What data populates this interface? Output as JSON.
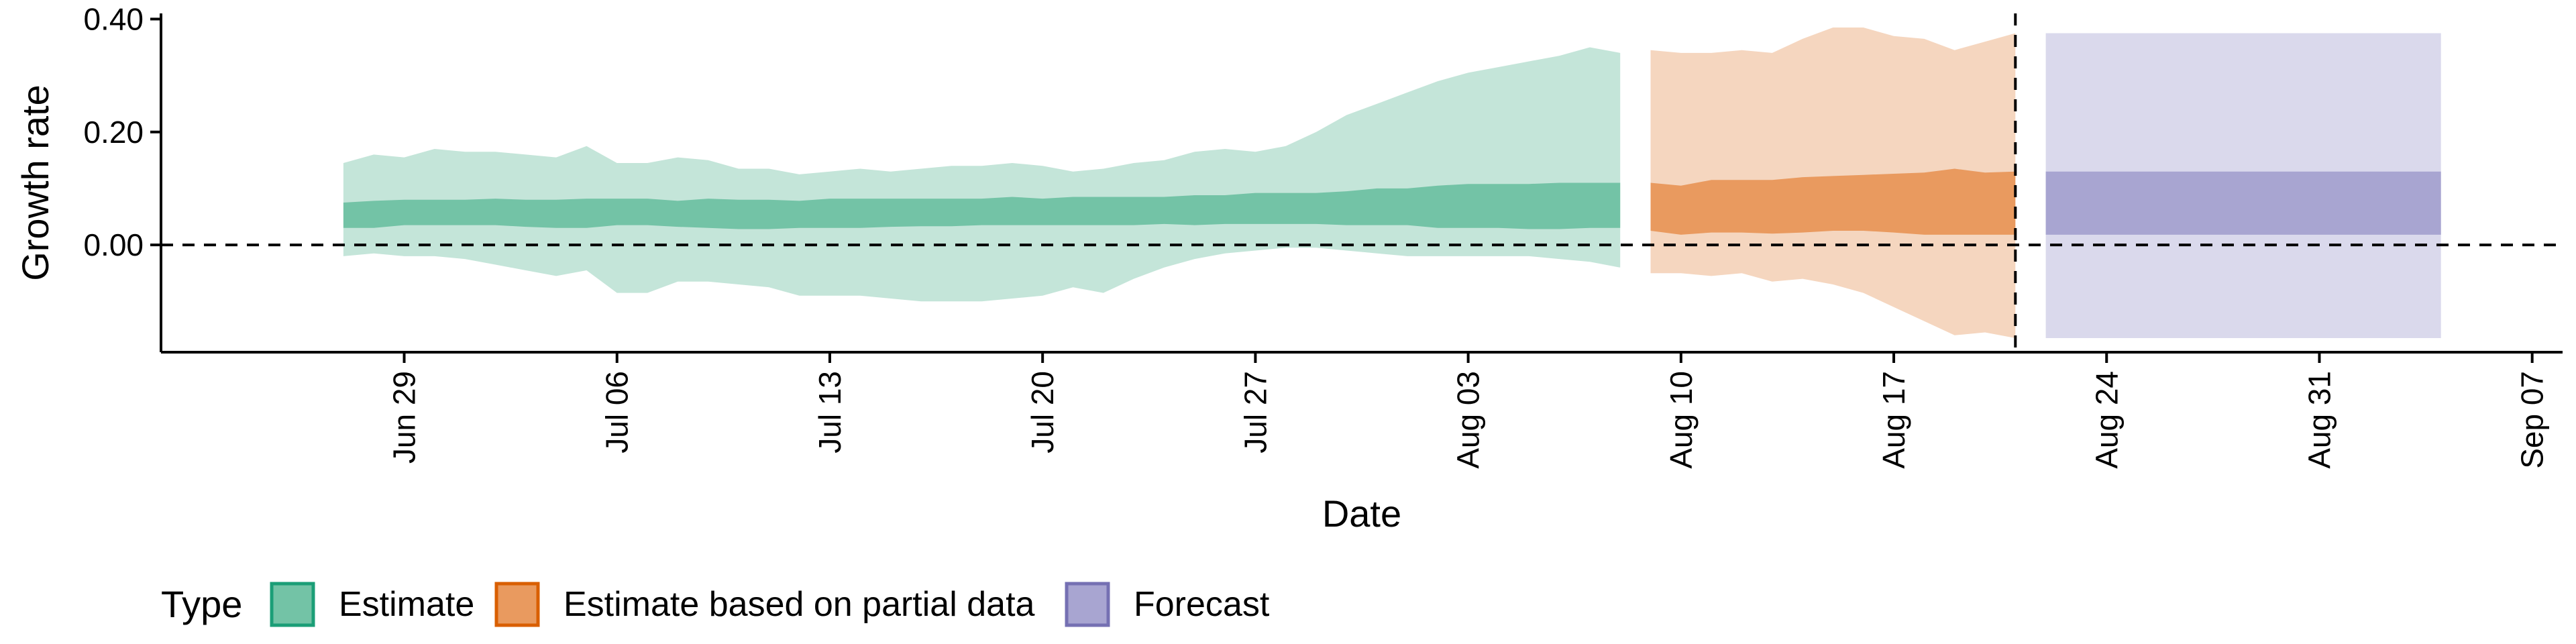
{
  "chart_data": {
    "type": "area",
    "xlabel": "Date",
    "ylabel": "Growth rate",
    "ylim": [
      -0.19,
      0.41
    ],
    "xlim": [
      "2020-06-21",
      "2020-09-08"
    ],
    "y_ticks": [
      0.0,
      0.2,
      0.4
    ],
    "y_tick_labels": [
      "0.00",
      "0.20",
      "0.40"
    ],
    "x_ticks": [
      "2020-06-29",
      "2020-07-06",
      "2020-07-13",
      "2020-07-20",
      "2020-07-27",
      "2020-08-03",
      "2020-08-10",
      "2020-08-17",
      "2020-08-24",
      "2020-08-31",
      "2020-09-07"
    ],
    "x_tick_labels": [
      "Jun 29",
      "Jul 06",
      "Jul 13",
      "Jul 20",
      "Jul 27",
      "Aug 03",
      "Aug 10",
      "Aug 17",
      "Aug 24",
      "Aug 31",
      "Sep 07"
    ],
    "reference_lines": [
      {
        "axis": "y",
        "value": 0.0,
        "style": "dashed"
      },
      {
        "axis": "x",
        "value": "2020-08-21",
        "style": "dashed"
      }
    ],
    "legend": {
      "title": "Type",
      "position": "bottom-left",
      "entries": [
        {
          "label": "Estimate",
          "fill": "#73c3a6",
          "border": "#1b9e77"
        },
        {
          "label": "Estimate based on partial data",
          "fill": "#e99a5f",
          "border": "#d95f02"
        },
        {
          "label": "Forecast",
          "fill": "#a8a5d1",
          "border": "#7570b3"
        }
      ]
    },
    "series": [
      {
        "name": "Estimate",
        "outer_color": "#c4e5d9",
        "inner_color": "#73c3a6",
        "dates": [
          "2020-06-27",
          "2020-06-28",
          "2020-06-29",
          "2020-06-30",
          "2020-07-01",
          "2020-07-02",
          "2020-07-03",
          "2020-07-04",
          "2020-07-05",
          "2020-07-06",
          "2020-07-07",
          "2020-07-08",
          "2020-07-09",
          "2020-07-10",
          "2020-07-11",
          "2020-07-12",
          "2020-07-13",
          "2020-07-14",
          "2020-07-15",
          "2020-07-16",
          "2020-07-17",
          "2020-07-18",
          "2020-07-19",
          "2020-07-20",
          "2020-07-21",
          "2020-07-22",
          "2020-07-23",
          "2020-07-24",
          "2020-07-25",
          "2020-07-26",
          "2020-07-27",
          "2020-07-28",
          "2020-07-29",
          "2020-07-30",
          "2020-07-31",
          "2020-08-01",
          "2020-08-02",
          "2020-08-03",
          "2020-08-04",
          "2020-08-05",
          "2020-08-06",
          "2020-08-07",
          "2020-08-08"
        ],
        "lower_90": [
          -0.02,
          -0.015,
          -0.02,
          -0.02,
          -0.025,
          -0.035,
          -0.045,
          -0.055,
          -0.045,
          -0.085,
          -0.085,
          -0.065,
          -0.065,
          -0.07,
          -0.075,
          -0.09,
          -0.09,
          -0.09,
          -0.095,
          -0.1,
          -0.1,
          -0.1,
          -0.095,
          -0.09,
          -0.075,
          -0.085,
          -0.06,
          -0.04,
          -0.025,
          -0.015,
          -0.01,
          -0.005,
          -0.005,
          -0.01,
          -0.015,
          -0.02,
          -0.02,
          -0.02,
          -0.02,
          -0.02,
          -0.025,
          -0.03,
          -0.04
        ],
        "upper_90": [
          0.145,
          0.16,
          0.155,
          0.17,
          0.165,
          0.165,
          0.16,
          0.155,
          0.175,
          0.145,
          0.145,
          0.155,
          0.15,
          0.135,
          0.135,
          0.125,
          0.13,
          0.135,
          0.13,
          0.135,
          0.14,
          0.14,
          0.145,
          0.14,
          0.13,
          0.135,
          0.145,
          0.15,
          0.165,
          0.17,
          0.165,
          0.175,
          0.2,
          0.23,
          0.25,
          0.27,
          0.29,
          0.305,
          0.315,
          0.325,
          0.335,
          0.35,
          0.34
        ],
        "lower_50": [
          0.03,
          0.03,
          0.035,
          0.035,
          0.035,
          0.035,
          0.032,
          0.03,
          0.03,
          0.035,
          0.035,
          0.032,
          0.03,
          0.028,
          0.028,
          0.03,
          0.03,
          0.03,
          0.032,
          0.033,
          0.033,
          0.035,
          0.035,
          0.035,
          0.035,
          0.035,
          0.035,
          0.037,
          0.035,
          0.037,
          0.037,
          0.037,
          0.037,
          0.035,
          0.035,
          0.035,
          0.03,
          0.03,
          0.03,
          0.028,
          0.028,
          0.03,
          0.03
        ],
        "upper_50": [
          0.075,
          0.078,
          0.08,
          0.08,
          0.08,
          0.082,
          0.08,
          0.08,
          0.082,
          0.082,
          0.082,
          0.078,
          0.082,
          0.08,
          0.08,
          0.078,
          0.082,
          0.082,
          0.082,
          0.082,
          0.082,
          0.082,
          0.085,
          0.082,
          0.085,
          0.085,
          0.085,
          0.085,
          0.088,
          0.088,
          0.092,
          0.092,
          0.092,
          0.095,
          0.1,
          0.1,
          0.105,
          0.108,
          0.108,
          0.108,
          0.11,
          0.11,
          0.11
        ]
      },
      {
        "name": "Estimate based on partial data",
        "outer_color": "#f5d6bf",
        "inner_color": "#e99a5f",
        "dates": [
          "2020-08-09",
          "2020-08-10",
          "2020-08-11",
          "2020-08-12",
          "2020-08-13",
          "2020-08-14",
          "2020-08-15",
          "2020-08-16",
          "2020-08-17",
          "2020-08-18",
          "2020-08-19",
          "2020-08-20",
          "2020-08-21"
        ],
        "lower_90": [
          -0.05,
          -0.05,
          -0.055,
          -0.05,
          -0.065,
          -0.06,
          -0.07,
          -0.085,
          -0.11,
          -0.135,
          -0.16,
          -0.155,
          -0.165
        ],
        "upper_90": [
          0.345,
          0.34,
          0.34,
          0.345,
          0.34,
          0.365,
          0.385,
          0.385,
          0.37,
          0.365,
          0.345,
          0.36,
          0.375
        ],
        "lower_50": [
          0.025,
          0.018,
          0.022,
          0.022,
          0.02,
          0.022,
          0.025,
          0.025,
          0.022,
          0.018,
          0.018,
          0.018,
          0.018
        ],
        "upper_50": [
          0.11,
          0.105,
          0.115,
          0.115,
          0.115,
          0.12,
          0.122,
          0.124,
          0.126,
          0.128,
          0.135,
          0.128,
          0.13
        ]
      },
      {
        "name": "Forecast",
        "outer_color": "#dad9ec",
        "inner_color": "#a8a5d1",
        "dates": [
          "2020-08-22",
          "2020-09-04"
        ],
        "lower_90": [
          -0.165,
          -0.165
        ],
        "upper_90": [
          0.375,
          0.375
        ],
        "lower_50": [
          0.018,
          0.018
        ],
        "upper_50": [
          0.13,
          0.13
        ]
      }
    ]
  }
}
